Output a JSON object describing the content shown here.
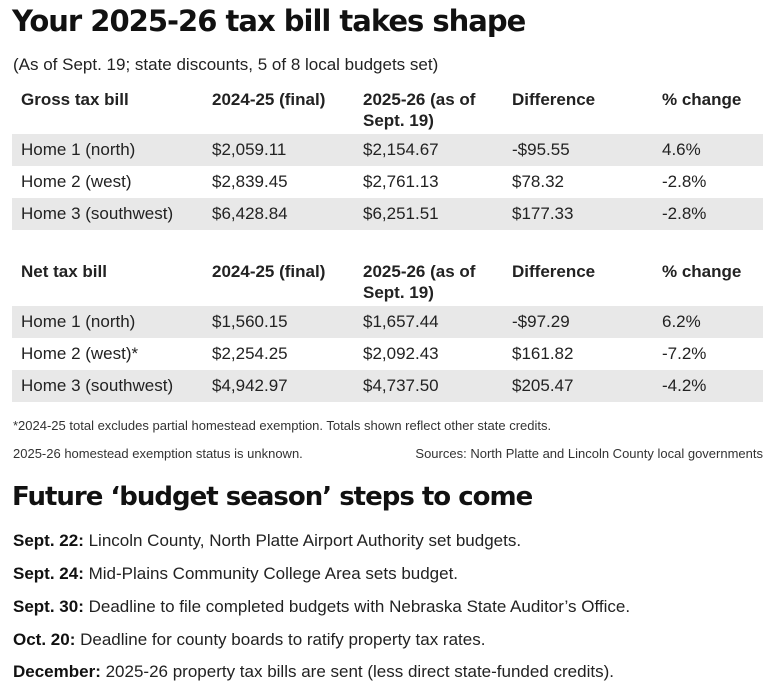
{
  "title": "Your 2025-26 tax bill takes shape",
  "subtitle": "(As of Sept. 19; state discounts, 5 of 8 local budgets set)",
  "gross_table": {
    "headers": [
      "Gross tax bill",
      "2024-25 (final)",
      "2025-26 (as of Sept. 19)",
      "Difference",
      "% change"
    ],
    "rows": [
      [
        "Home 1 (north)",
        "$2,059.11",
        "$2,154.67",
        "-$95.55",
        "4.6%"
      ],
      [
        "Home 2 (west)",
        "$2,839.45",
        "$2,761.13",
        "$78.32",
        "-2.8%"
      ],
      [
        "Home 3 (southwest)",
        "$6,428.84",
        "$6,251.51",
        "$177.33",
        "-2.8%"
      ]
    ]
  },
  "net_table": {
    "headers": [
      "Net tax bill",
      "2024-25 (final)",
      "2025-26 (as of Sept. 19)",
      "Difference",
      "% change"
    ],
    "rows": [
      [
        "Home 1 (north)",
        "$1,560.15",
        "$1,657.44",
        "-$97.29",
        "6.2%"
      ],
      [
        "Home 2 (west)*",
        "$2,254.25",
        "$2,092.43",
        "$161.82",
        "-7.2%"
      ],
      [
        "Home 3 (southwest)",
        "$4,942.97",
        "$4,737.50",
        "$205.47",
        "-4.2%"
      ]
    ]
  },
  "footnote1": "*2024-25 total excludes partial homestead exemption. Totals shown reflect other state credits.",
  "footnote2": "2025-26 homestead exemption status is unknown.",
  "sources": "Sources: North Platte and Lincoln County local governments",
  "steps_title": "Future ‘budget season’ steps to come",
  "steps": [
    {
      "date": "Sept. 22:",
      "text": " Lincoln County, North Platte Airport Authority set budgets."
    },
    {
      "date": "Sept. 24:",
      "text": " Mid-Plains Community College Area sets budget."
    },
    {
      "date": "Sept. 30:",
      "text": " Deadline to file completed budgets with Nebraska State Auditor’s Office."
    },
    {
      "date": "Oct. 20:",
      "text": " Deadline for county boards to ratify property tax rates."
    },
    {
      "date": "December:",
      "text": " 2025-26 property tax bills are sent (less direct state-funded credits)."
    }
  ]
}
